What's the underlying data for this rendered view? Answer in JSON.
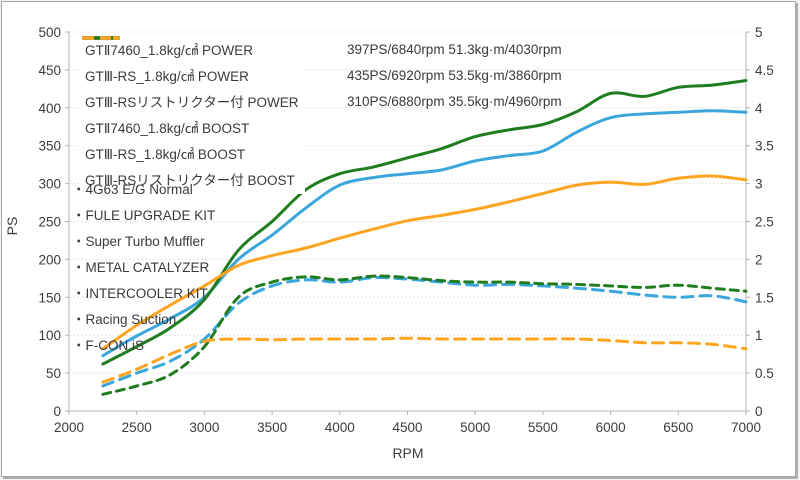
{
  "chart_data": {
    "type": "line",
    "title": "",
    "xlabel": "RPM",
    "ylabel": "PS",
    "x_axis": {
      "min": 2000,
      "max": 7000,
      "tick_step": 500
    },
    "y_axis_left": {
      "label": "PS",
      "min": 0,
      "max": 500,
      "tick_step": 50
    },
    "y_axis_right": {
      "label": "",
      "min": 0,
      "max": 5,
      "tick_step": 0.5
    },
    "grid": "horizontal-only",
    "legend_position": "top-left-inside",
    "x": [
      2250,
      2500,
      2750,
      3000,
      3250,
      3500,
      3750,
      4000,
      4250,
      4500,
      4750,
      5000,
      5250,
      5500,
      5750,
      6000,
      6250,
      6500,
      6750,
      7000
    ],
    "series": [
      {
        "name": "GTⅡ7460_1.8kg/㎠ POWER",
        "stats": "397PS/6840rpm 51.3kg·m/4030rpm",
        "axis": "left",
        "style": "solid",
        "color": "#3aa6dc",
        "values": [
          73,
          99,
          122,
          150,
          200,
          232,
          268,
          298,
          308,
          313,
          318,
          330,
          337,
          343,
          368,
          387,
          392,
          394,
          396,
          394
        ]
      },
      {
        "name": "GTⅢ-RS_1.8kg/㎠ POWER",
        "stats": "435PS/6920rpm 53.5kg·m/3860rpm",
        "axis": "left",
        "style": "solid",
        "color": "#1f7d1f",
        "values": [
          62,
          85,
          110,
          147,
          212,
          250,
          292,
          313,
          322,
          334,
          346,
          362,
          371,
          378,
          395,
          419,
          415,
          427,
          430,
          436
        ]
      },
      {
        "name": "GTⅢ-RSリストリクター付 POWER",
        "stats": "310PS/6880rpm 35.5kg·m/4960rpm",
        "axis": "left",
        "style": "solid",
        "color": "#ffa420",
        "values": [
          82,
          113,
          140,
          165,
          192,
          205,
          215,
          228,
          240,
          251,
          258,
          266,
          276,
          287,
          298,
          302,
          299,
          307,
          310,
          305
        ]
      },
      {
        "name": "GTⅡ7460_1.8kg/㎠ BOOST",
        "stats": "",
        "axis": "right",
        "style": "dashed",
        "color": "#3aa6dc",
        "values": [
          0.33,
          0.5,
          0.66,
          0.95,
          1.42,
          1.65,
          1.73,
          1.7,
          1.76,
          1.74,
          1.7,
          1.66,
          1.67,
          1.65,
          1.62,
          1.58,
          1.53,
          1.5,
          1.52,
          1.44
        ]
      },
      {
        "name": "GTⅢ-RS_1.8kg/㎠ BOOST",
        "stats": "",
        "axis": "right",
        "style": "dashed",
        "color": "#1f7d1f",
        "values": [
          0.22,
          0.33,
          0.48,
          0.85,
          1.5,
          1.7,
          1.77,
          1.73,
          1.78,
          1.76,
          1.72,
          1.7,
          1.7,
          1.68,
          1.67,
          1.65,
          1.63,
          1.66,
          1.62,
          1.58
        ]
      },
      {
        "name": "GTⅢ-RSリストリクター付 BOOST",
        "stats": "",
        "axis": "right",
        "style": "dashed",
        "color": "#ffa420",
        "values": [
          0.38,
          0.55,
          0.75,
          0.92,
          0.95,
          0.94,
          0.95,
          0.95,
          0.95,
          0.96,
          0.95,
          0.95,
          0.95,
          0.95,
          0.95,
          0.93,
          0.9,
          0.9,
          0.88,
          0.82
        ]
      }
    ],
    "annotations": [
      "・4G63 E/G Normal",
      "・FULE UPGRADE KIT",
      "・Super Turbo Muffler",
      "・METAL CATALYZER",
      "・INTERCOOLER KIT",
      "・Racing Suction",
      "・F-CON iS"
    ]
  },
  "colors": {
    "grid": "#e4e4e4",
    "axis": "#b4b4b4",
    "text": "#3c3c3c",
    "background": "#ffffff"
  }
}
